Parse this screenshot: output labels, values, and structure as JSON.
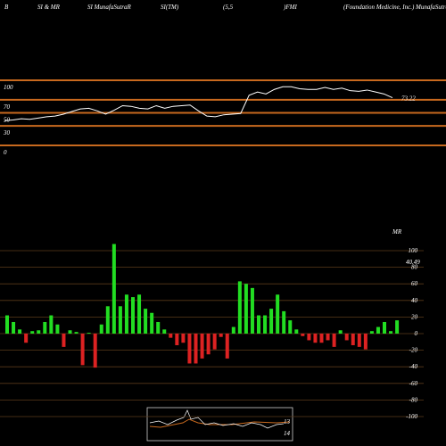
{
  "header": [
    "B",
    "SI & MR",
    "SI MunafaSutraR",
    "SI(TM)",
    "(5,5",
    ")FMI",
    "(Foundation Medicine, Inc.) MunafaSutra"
  ],
  "chart_data": [
    {
      "type": "line",
      "color": "#ffffff",
      "grid_color": "#c8691e",
      "values": [
        38,
        39,
        41,
        40,
        42,
        44,
        45,
        48,
        52,
        56,
        57,
        53,
        48,
        54,
        61,
        60,
        57,
        56,
        61,
        57,
        60,
        61,
        62,
        53,
        45,
        44,
        47,
        48,
        49,
        77,
        82,
        79,
        86,
        90,
        90,
        87,
        86,
        86,
        89,
        86,
        88,
        84,
        83,
        85,
        82,
        79,
        73.22
      ],
      "ylim": [
        0,
        100
      ],
      "yticks": [
        0,
        30,
        50,
        70,
        100
      ]
    },
    {
      "type": "bar",
      "title": "MR",
      "annotation": "40.49",
      "positive_color": "#22dd22",
      "negative_color": "#dd2222",
      "values": [
        22,
        14,
        5,
        -11,
        3,
        4,
        14,
        22,
        11,
        -16,
        4,
        2,
        -38,
        1,
        -41,
        11,
        33,
        108,
        33,
        47,
        44,
        47,
        30,
        25,
        14,
        5,
        -5,
        -14,
        -11,
        -36,
        -36,
        -30,
        -25,
        -19,
        -4,
        -30,
        8,
        63,
        60,
        55,
        22,
        22,
        30,
        47,
        27,
        16,
        5,
        -3,
        -8,
        -11,
        -11,
        -8,
        -16,
        4,
        -8,
        -14,
        -16,
        -19,
        3,
        8,
        14,
        3,
        16
      ],
      "ylim": [
        -100,
        100
      ],
      "yticks": [
        100,
        80,
        60,
        40,
        20,
        0,
        -20,
        -40,
        -60,
        -80,
        -100
      ]
    }
  ],
  "mini_chart": {
    "labels": [
      "13",
      "14"
    ]
  }
}
